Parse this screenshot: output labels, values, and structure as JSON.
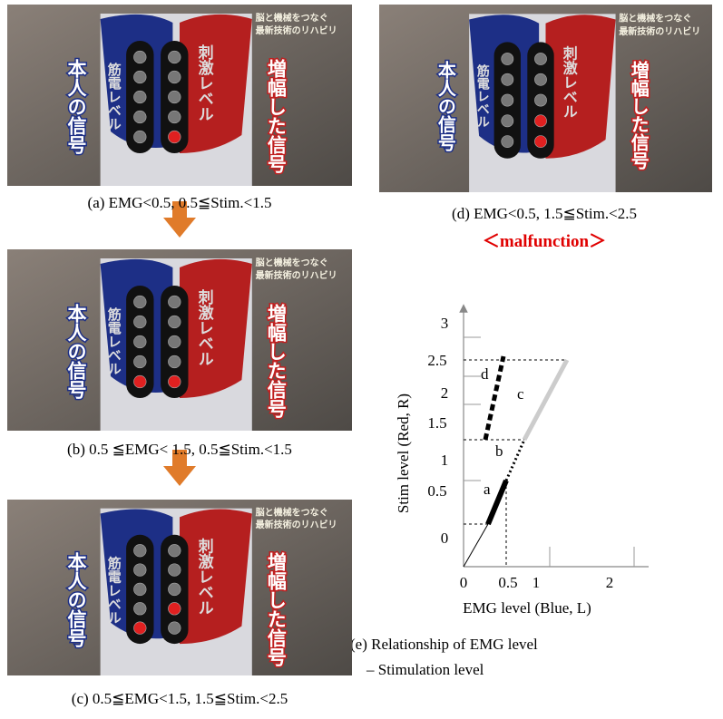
{
  "photos": [
    {
      "caption": "(a) EMG<0.5, 0.5≦Stim.<1.5",
      "own_signal": "本人の信号",
      "emg_level": "筋電レベル",
      "stim_level": "刺激レベル",
      "amplified_signal": "増幅した信号",
      "banner_1": "脳と機械をつなぐ",
      "banner_2": "最新技術のリハビリ"
    },
    {
      "caption": "(b) 0.5 ≦EMG< 1.5, 0.5≦Stim.<1.5",
      "own_signal": "本人の信号",
      "emg_level": "筋電レベル",
      "stim_level": "刺激レベル",
      "amplified_signal": "増幅した信号",
      "banner_1": "脳と機械をつなぐ",
      "banner_2": "最新技術のリハビリ"
    },
    {
      "caption": "(c) 0.5≦EMG<1.5, 1.5≦Stim.<2.5",
      "own_signal": "本人の信号",
      "emg_level": "筋電レベル",
      "stim_level": "刺激レベル",
      "amplified_signal": "増幅した信号",
      "banner_1": "脳と機械をつなぐ",
      "banner_2": "最新技術のリハビリ"
    },
    {
      "caption": "(d) EMG<0.5, 1.5≦Stim.<2.5",
      "own_signal": "本人の信号",
      "emg_level": "筋電レベル",
      "stim_level": "刺激レベル",
      "amplified_signal": "増幅した信号",
      "banner_1": "脳と機械をつなぐ",
      "banner_2": "最新技術のリハビリ"
    }
  ],
  "malfunction": "＜malfunction＞",
  "graph": {
    "y_label": "Stim level (Red, R)",
    "x_label": "EMG level (Blue, L)",
    "y_ticks": [
      "0",
      "0.5",
      "1",
      "1.5",
      "2",
      "2.5",
      "3"
    ],
    "x_ticks": [
      "0",
      "0.5",
      "1",
      "2"
    ],
    "segments": [
      "a",
      "b",
      "c",
      "d"
    ],
    "caption_1": "(e) Relationship of EMG level",
    "caption_2": "– Stimulation level"
  }
}
